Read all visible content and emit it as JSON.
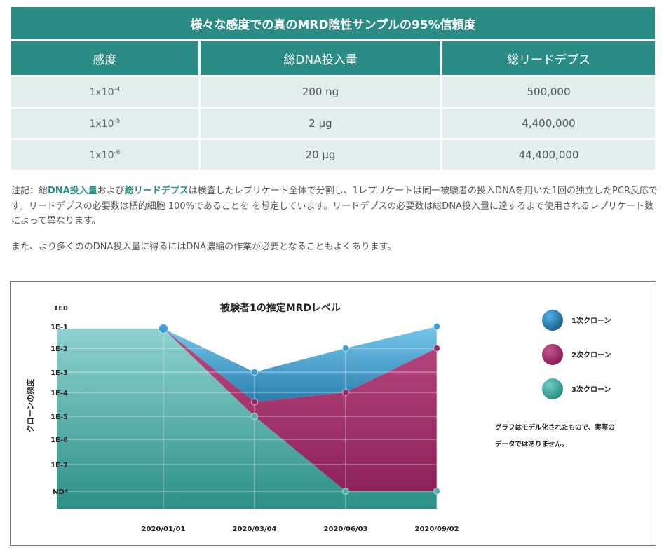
{
  "table": {
    "title": "様々な感度での真のMRD陰性サンプルの95%信頼度",
    "headers": [
      "感度",
      "総DNA投入量",
      "総リードデプス"
    ],
    "rows": [
      {
        "sens_base": "1x10",
        "sens_exp": "-4",
        "dna": "200 ng",
        "depth": "500,000"
      },
      {
        "sens_base": "1x10",
        "sens_exp": "-5",
        "dna": "2 μg",
        "depth": "4,400,000"
      },
      {
        "sens_base": "1x10",
        "sens_exp": "-6",
        "dna": "20 μg",
        "depth": "44,400,000"
      }
    ]
  },
  "notes": {
    "p1_a": "注記：総",
    "p1_hl1": "DNA投入量",
    "p1_b": "および",
    "p1_hl2": "総リードデプス",
    "p1_c": "は検査したレプリケート全体で分割し、1レプリケートは同一被験者の投入DNAを用いた1回の独立したPCR反応です。リードデプスの必要数は標的細胞 100%であることを を想定しています。リードデプスの必要数は総DNA投入量に達するまで使用されるレプリケート数によって異なります。",
    "p2": "また、より多くののDNA投入量に得るにはDNA濃縮の作業が必要となることもよくあります。"
  },
  "chart_data": {
    "type": "area",
    "title": "被験者1の推定MRDレベル",
    "ylabel": "クローンの頻度",
    "xlabel": "",
    "y_tick_labels": [
      "1E0",
      "1E-1",
      "1E-2",
      "1E-3",
      "1E-4",
      "1E-5",
      "1E-6",
      "1E-7",
      "ND*"
    ],
    "y_scale": "log10 (ND* below 1E-7)",
    "categories": [
      "2020/01/01",
      "2020/03/04",
      "2020/06/03",
      "2020/09/02"
    ],
    "series": [
      {
        "name": "1次クローン",
        "color": "#2a8fc4",
        "values": [
          0.08,
          0.001,
          0.01,
          0.1
        ]
      },
      {
        "name": "2次クローン",
        "color": "#a8306a",
        "values": [
          0.08,
          4e-05,
          0.0001,
          0.01
        ]
      },
      {
        "name": "3次クローン",
        "color": "#3aa79e",
        "values": [
          0.08,
          1e-05,
          "ND*",
          "ND*"
        ]
      }
    ],
    "legend_position": "right",
    "annotation_line1": "グラフはモデル化されたもので、実際の",
    "annotation_line2": "データではありません。"
  }
}
